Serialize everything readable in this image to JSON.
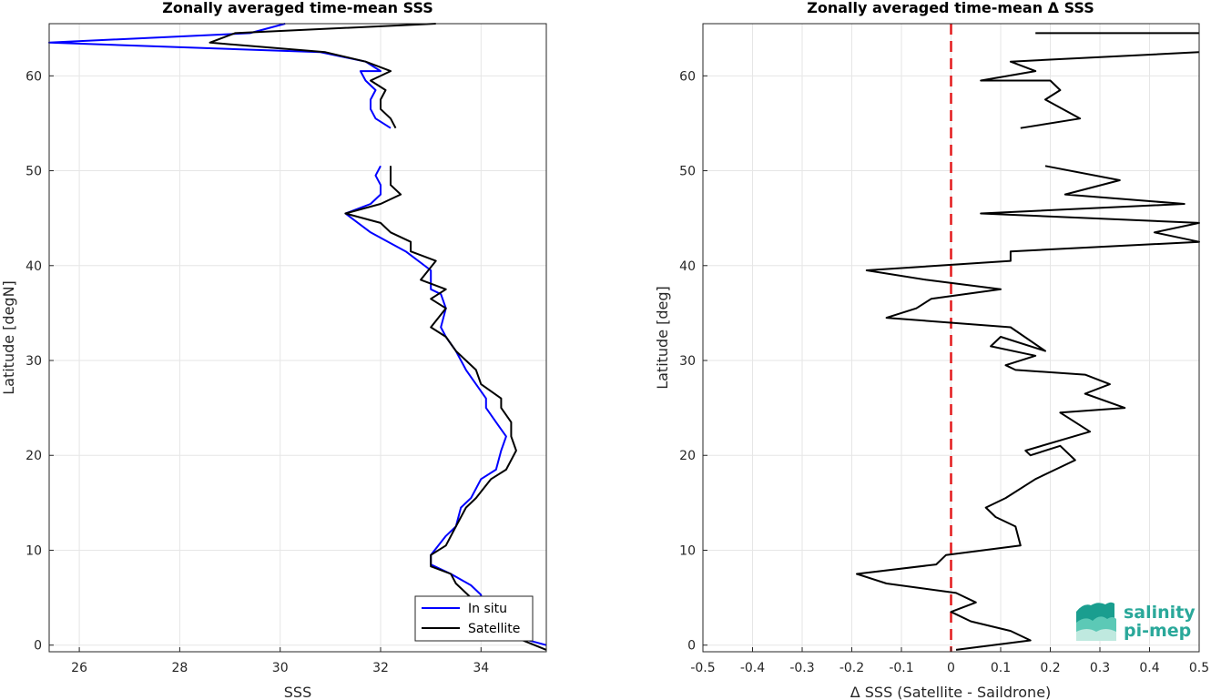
{
  "chart_data": [
    {
      "type": "line",
      "title": "Zonally averaged time-mean SSS",
      "xlabel": "SSS",
      "ylabel": "Latitude [degN]",
      "xlim": [
        25.4,
        35.3
      ],
      "ylim": [
        -0.7,
        65.5
      ],
      "xticks": [
        26,
        28,
        30,
        32,
        34
      ],
      "yticks": [
        0,
        10,
        20,
        30,
        40,
        50,
        60
      ],
      "grid": true,
      "legend": {
        "position": "bottom-right",
        "entries": [
          "In situ",
          "Satellite"
        ]
      },
      "series": [
        {
          "name": "In situ",
          "color": "#0000ff",
          "segments": [
            [
              [
                35.3,
                0
              ],
              [
                34.6,
                1
              ],
              [
                34.2,
                2.5
              ],
              [
                34.0,
                3.7
              ],
              [
                34.0,
                5.3
              ],
              [
                33.8,
                6.3
              ],
              [
                33.4,
                7.5
              ],
              [
                33.0,
                8.5
              ],
              [
                33.0,
                9.5
              ],
              [
                33.3,
                11.5
              ],
              [
                33.5,
                12.5
              ],
              [
                33.6,
                14.5
              ],
              [
                33.8,
                15.5
              ],
              [
                34.0,
                17.5
              ],
              [
                34.3,
                18.5
              ],
              [
                34.4,
                20.5
              ],
              [
                34.5,
                22
              ],
              [
                34.3,
                23.5
              ],
              [
                34.1,
                25
              ],
              [
                34.1,
                26
              ],
              [
                33.9,
                27.5
              ],
              [
                33.7,
                29
              ],
              [
                33.5,
                31
              ],
              [
                33.3,
                32.5
              ],
              [
                33.2,
                33.5
              ],
              [
                33.3,
                35.5
              ],
              [
                33.2,
                37
              ],
              [
                33.0,
                37.5
              ],
              [
                33.0,
                38.5
              ],
              [
                33.0,
                39.5
              ],
              [
                32.5,
                41.5
              ],
              [
                31.8,
                43.5
              ],
              [
                31.3,
                45.5
              ],
              [
                31.8,
                46.5
              ],
              [
                32.0,
                47.5
              ],
              [
                32.0,
                48.5
              ],
              [
                31.9,
                49.5
              ],
              [
                32.0,
                50.5
              ]
            ],
            [
              [
                32.2,
                54.5
              ],
              [
                31.9,
                55.5
              ],
              [
                31.8,
                56.5
              ],
              [
                31.8,
                57.5
              ],
              [
                31.9,
                58.5
              ],
              [
                31.7,
                59.5
              ],
              [
                31.6,
                60.5
              ],
              [
                32.0,
                60.5
              ],
              [
                31.7,
                61.5
              ],
              [
                30.8,
                62.5
              ],
              [
                25.4,
                63.5
              ],
              [
                29.4,
                64.5
              ],
              [
                30.1,
                65.5
              ]
            ]
          ]
        },
        {
          "name": "Satellite",
          "color": "#000000",
          "segments": [
            [
              [
                35.3,
                -0.5
              ],
              [
                34.6,
                1
              ],
              [
                34.3,
                2.5
              ],
              [
                34.1,
                4
              ],
              [
                33.8,
                5
              ],
              [
                33.5,
                6.5
              ],
              [
                33.4,
                7.5
              ],
              [
                33.0,
                8.3
              ],
              [
                33.0,
                9.5
              ],
              [
                33.3,
                10.5
              ],
              [
                33.5,
                12.5
              ],
              [
                33.7,
                14.5
              ],
              [
                33.9,
                15.5
              ],
              [
                34.2,
                17.5
              ],
              [
                34.5,
                18.5
              ],
              [
                34.7,
                20.5
              ],
              [
                34.6,
                22
              ],
              [
                34.6,
                23.5
              ],
              [
                34.4,
                25
              ],
              [
                34.4,
                26
              ],
              [
                34.0,
                27.5
              ],
              [
                33.9,
                29
              ],
              [
                33.5,
                31
              ],
              [
                33.3,
                32.5
              ],
              [
                33.0,
                33.5
              ],
              [
                33.3,
                35.5
              ],
              [
                33.0,
                36.5
              ],
              [
                33.3,
                37.5
              ],
              [
                32.8,
                38.5
              ],
              [
                33.1,
                40.5
              ],
              [
                32.6,
                41.5
              ],
              [
                32.6,
                42.5
              ],
              [
                32.2,
                43.5
              ],
              [
                32.0,
                44.5
              ],
              [
                31.3,
                45.5
              ],
              [
                32.0,
                46.5
              ],
              [
                32.4,
                47.5
              ],
              [
                32.2,
                48.5
              ],
              [
                32.2,
                49.5
              ],
              [
                32.2,
                50.5
              ]
            ],
            [
              [
                32.3,
                54.5
              ],
              [
                32.2,
                55.5
              ],
              [
                32.0,
                56.5
              ],
              [
                32.0,
                57.5
              ],
              [
                32.1,
                58.5
              ],
              [
                31.8,
                59.5
              ],
              [
                32.2,
                60.5
              ],
              [
                31.7,
                61.5
              ],
              [
                30.9,
                62.5
              ],
              [
                28.6,
                63.5
              ],
              [
                29.1,
                64.5
              ],
              [
                33.1,
                65.5
              ]
            ]
          ]
        }
      ]
    },
    {
      "type": "line",
      "title": "Zonally averaged time-mean Δ SSS",
      "xlabel": "Δ SSS (Satellite - Saildrone)",
      "ylabel": "Latitude [deg]",
      "xlim": [
        -0.5,
        0.5
      ],
      "ylim": [
        -0.7,
        65.5
      ],
      "xticks": [
        -0.5,
        -0.4,
        -0.3,
        -0.2,
        -0.1,
        0,
        0.1,
        0.2,
        0.3,
        0.4,
        0.5
      ],
      "xtick_labels": [
        "-0.5",
        "-0.4",
        "-0.3",
        "-0.2",
        "-0.1",
        "0",
        "0.1",
        "0.2",
        "0.3",
        "0.4",
        "0.5"
      ],
      "yticks": [
        0,
        10,
        20,
        30,
        40,
        50,
        60
      ],
      "grid": true,
      "reference_line": {
        "x": 0,
        "color": "#e31a1c",
        "style": "dashed"
      },
      "series": [
        {
          "color": "#000000",
          "segments": [
            [
              [
                0.01,
                -0.5
              ],
              [
                0.16,
                0.5
              ],
              [
                0.12,
                1.5
              ],
              [
                0.04,
                2.5
              ],
              [
                0.0,
                3.5
              ],
              [
                0.05,
                4.5
              ],
              [
                0.01,
                5.5
              ],
              [
                -0.13,
                6.5
              ],
              [
                -0.19,
                7.5
              ],
              [
                -0.03,
                8.5
              ],
              [
                -0.01,
                9.5
              ],
              [
                0.14,
                10.5
              ],
              [
                0.13,
                12.5
              ],
              [
                0.09,
                13.5
              ],
              [
                0.07,
                14.5
              ],
              [
                0.11,
                15.5
              ],
              [
                0.17,
                17.5
              ],
              [
                0.21,
                18.5
              ],
              [
                0.25,
                19.5
              ],
              [
                0.22,
                21
              ],
              [
                0.16,
                20
              ],
              [
                0.15,
                20.5
              ],
              [
                0.28,
                22.5
              ],
              [
                0.22,
                24.5
              ],
              [
                0.35,
                25
              ],
              [
                0.27,
                26.5
              ],
              [
                0.32,
                27.5
              ],
              [
                0.27,
                28.5
              ],
              [
                0.13,
                29
              ],
              [
                0.11,
                29.5
              ],
              [
                0.17,
                30.5
              ],
              [
                0.08,
                31.5
              ],
              [
                0.1,
                32.5
              ],
              [
                0.19,
                31
              ],
              [
                0.12,
                33.5
              ],
              [
                -0.13,
                34.5
              ],
              [
                -0.07,
                35.5
              ],
              [
                -0.04,
                36.5
              ],
              [
                0.1,
                37.5
              ],
              [
                -0.05,
                38.5
              ],
              [
                -0.17,
                39.5
              ],
              [
                0.12,
                40.5
              ],
              [
                0.12,
                41.5
              ],
              [
                0.5,
                42.5
              ],
              [
                0.41,
                43.5
              ],
              [
                0.5,
                44.5
              ],
              [
                0.06,
                45.5
              ],
              [
                0.47,
                46.5
              ],
              [
                0.23,
                47.5
              ],
              [
                0.34,
                49
              ],
              [
                0.19,
                50.5
              ]
            ],
            [
              [
                0.14,
                54.5
              ],
              [
                0.26,
                55.5
              ],
              [
                0.19,
                57.5
              ],
              [
                0.22,
                58.5
              ],
              [
                0.2,
                59.5
              ],
              [
                0.06,
                59.5
              ],
              [
                0.17,
                60.5
              ],
              [
                0.12,
                61.5
              ],
              [
                0.5,
                62.5
              ]
            ],
            [
              [
                0.17,
                64.5
              ],
              [
                0.5,
                64.5
              ]
            ]
          ]
        }
      ]
    }
  ],
  "logo": {
    "line1": "salinity",
    "line2": "pi-mep"
  }
}
